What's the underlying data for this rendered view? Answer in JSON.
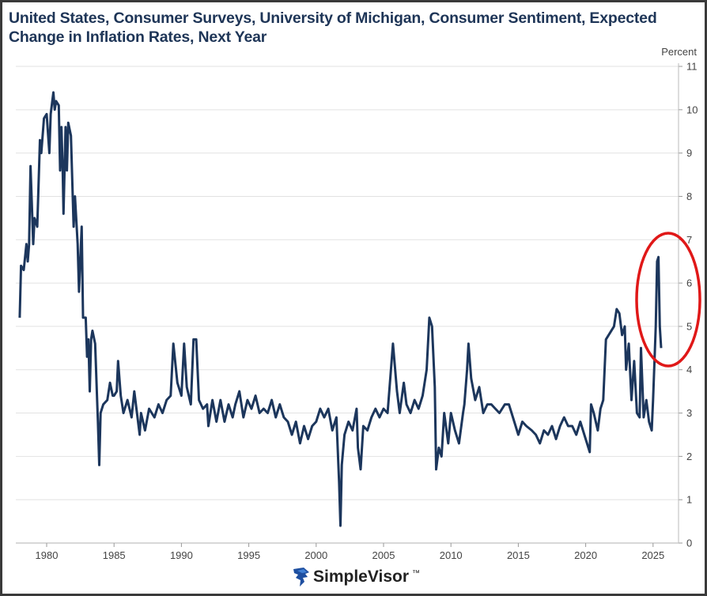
{
  "chart_data": {
    "type": "line",
    "title": "United States, Consumer Surveys, University of Michigan, Consumer Sentiment, Expected Change in Inflation Rates, Next Year",
    "ylabel": "Percent",
    "xlabel": "",
    "xlim": [
      1978,
      2026.4
    ],
    "ylim": [
      0,
      11
    ],
    "x_ticks": [
      1980,
      1985,
      1990,
      1995,
      2000,
      2005,
      2010,
      2015,
      2020,
      2025
    ],
    "y_ticks": [
      0,
      1,
      2,
      3,
      4,
      5,
      6,
      7,
      8,
      9,
      10,
      11
    ],
    "grid": true,
    "y_axis_side": "right",
    "line_color": "#1c365c",
    "annotation": {
      "shape": "ellipse",
      "color": "#e01818",
      "around": "2025 spike"
    },
    "series": [
      {
        "x": [
          1978.0,
          1978.1,
          1978.3,
          1978.5,
          1978.6,
          1978.7,
          1978.8,
          1979.0,
          1979.1,
          1979.3,
          1979.5,
          1979.6,
          1979.8,
          1980.0,
          1980.2,
          1980.3,
          1980.5,
          1980.6,
          1980.7,
          1980.9,
          1981.0,
          1981.1,
          1981.2,
          1981.25,
          1981.4,
          1981.5,
          1981.6,
          1981.8,
          1982.0,
          1982.1,
          1982.3,
          1982.4,
          1982.6,
          1982.7,
          1982.9,
          1983.0,
          1983.1,
          1983.2,
          1983.3,
          1983.4,
          1983.6,
          1983.8,
          1983.9,
          1984.0,
          1984.2,
          1984.5,
          1984.7,
          1984.9,
          1985.0,
          1985.2,
          1985.3,
          1985.5,
          1985.7,
          1986.0,
          1986.3,
          1986.5,
          1986.7,
          1986.9,
          1987.0,
          1987.3,
          1987.6,
          1988.0,
          1988.3,
          1988.6,
          1988.9,
          1989.2,
          1989.4,
          1989.7,
          1990.0,
          1990.2,
          1990.4,
          1990.7,
          1990.9,
          1991.1,
          1991.3,
          1991.6,
          1991.9,
          1992.0,
          1992.3,
          1992.6,
          1992.9,
          1993.2,
          1993.5,
          1993.8,
          1994.0,
          1994.3,
          1994.6,
          1994.9,
          1995.2,
          1995.5,
          1995.8,
          1996.1,
          1996.4,
          1996.7,
          1997.0,
          1997.3,
          1997.6,
          1997.9,
          1998.2,
          1998.5,
          1998.8,
          1999.1,
          1999.4,
          1999.7,
          2000.0,
          2000.3,
          2000.6,
          2000.9,
          2001.2,
          2001.5,
          2001.7,
          2001.8,
          2001.9,
          2002.1,
          2002.4,
          2002.7,
          2003.0,
          2003.1,
          2003.3,
          2003.5,
          2003.8,
          2004.1,
          2004.4,
          2004.7,
          2005.0,
          2005.3,
          2005.7,
          2006.0,
          2006.2,
          2006.5,
          2006.7,
          2007.0,
          2007.3,
          2007.6,
          2007.9,
          2008.2,
          2008.4,
          2008.6,
          2008.8,
          2008.9,
          2009.1,
          2009.3,
          2009.5,
          2009.8,
          2010.0,
          2010.3,
          2010.6,
          2010.9,
          2011.0,
          2011.2,
          2011.3,
          2011.5,
          2011.8,
          2012.1,
          2012.4,
          2012.7,
          2013.0,
          2013.3,
          2013.6,
          2014.0,
          2014.3,
          2014.6,
          2015.0,
          2015.3,
          2015.6,
          2016.0,
          2016.3,
          2016.6,
          2016.9,
          2017.2,
          2017.5,
          2017.8,
          2018.1,
          2018.4,
          2018.7,
          2019.0,
          2019.3,
          2019.6,
          2019.9,
          2020.1,
          2020.3,
          2020.4,
          2020.6,
          2020.9,
          2021.1,
          2021.3,
          2021.5,
          2021.7,
          2021.9,
          2022.1,
          2022.3,
          2022.5,
          2022.7,
          2022.9,
          2023.0,
          2023.2,
          2023.4,
          2023.6,
          2023.8,
          2024.0,
          2024.1,
          2024.3,
          2024.5,
          2024.7,
          2024.9,
          2025.0,
          2025.2,
          2025.3,
          2025.4,
          2025.5,
          2025.6
        ],
        "y": [
          5.2,
          6.4,
          6.3,
          6.9,
          6.5,
          6.9,
          8.7,
          6.9,
          7.5,
          7.3,
          9.3,
          9.0,
          9.8,
          9.9,
          9.0,
          9.9,
          10.4,
          10.0,
          10.2,
          10.1,
          8.6,
          9.6,
          8.5,
          7.6,
          9.6,
          8.6,
          9.7,
          9.4,
          7.3,
          8.0,
          6.9,
          5.8,
          7.3,
          5.2,
          5.2,
          4.3,
          4.7,
          3.5,
          4.7,
          4.9,
          4.6,
          2.8,
          1.8,
          3.0,
          3.2,
          3.3,
          3.7,
          3.4,
          3.4,
          3.5,
          4.2,
          3.4,
          3.0,
          3.3,
          2.9,
          3.5,
          3.0,
          2.5,
          3.0,
          2.6,
          3.1,
          2.9,
          3.2,
          3.0,
          3.3,
          3.4,
          4.6,
          3.7,
          3.4,
          4.6,
          3.6,
          3.2,
          4.7,
          4.7,
          3.3,
          3.1,
          3.2,
          2.7,
          3.3,
          2.8,
          3.3,
          2.8,
          3.2,
          2.9,
          3.2,
          3.5,
          2.9,
          3.3,
          3.1,
          3.4,
          3.0,
          3.1,
          3.0,
          3.3,
          2.9,
          3.2,
          2.9,
          2.8,
          2.5,
          2.8,
          2.3,
          2.7,
          2.4,
          2.7,
          2.8,
          3.1,
          2.9,
          3.1,
          2.6,
          2.9,
          1.4,
          0.4,
          1.8,
          2.5,
          2.8,
          2.6,
          3.1,
          2.2,
          1.7,
          2.7,
          2.6,
          2.9,
          3.1,
          2.9,
          3.1,
          3.0,
          4.6,
          3.5,
          3.0,
          3.7,
          3.2,
          3.0,
          3.3,
          3.1,
          3.4,
          4.0,
          5.2,
          5.0,
          3.6,
          1.7,
          2.2,
          2.0,
          3.0,
          2.3,
          3.0,
          2.6,
          2.3,
          3.0,
          3.2,
          4.0,
          4.6,
          3.8,
          3.3,
          3.6,
          3.0,
          3.2,
          3.2,
          3.1,
          3.0,
          3.2,
          3.2,
          2.9,
          2.5,
          2.8,
          2.7,
          2.6,
          2.5,
          2.3,
          2.6,
          2.5,
          2.7,
          2.4,
          2.7,
          2.9,
          2.7,
          2.7,
          2.5,
          2.8,
          2.5,
          2.3,
          2.1,
          3.2,
          3.0,
          2.6,
          3.1,
          3.3,
          4.7,
          4.8,
          4.9,
          5.0,
          5.4,
          5.3,
          4.8,
          5.0,
          4.0,
          4.6,
          3.3,
          4.2,
          3.0,
          2.9,
          4.5,
          2.9,
          3.3,
          2.8,
          2.6,
          3.3,
          5.0,
          6.5,
          6.6,
          5.0,
          4.5
        ]
      }
    ]
  },
  "logo": {
    "text": "SimpleVisor",
    "tm": "™"
  }
}
